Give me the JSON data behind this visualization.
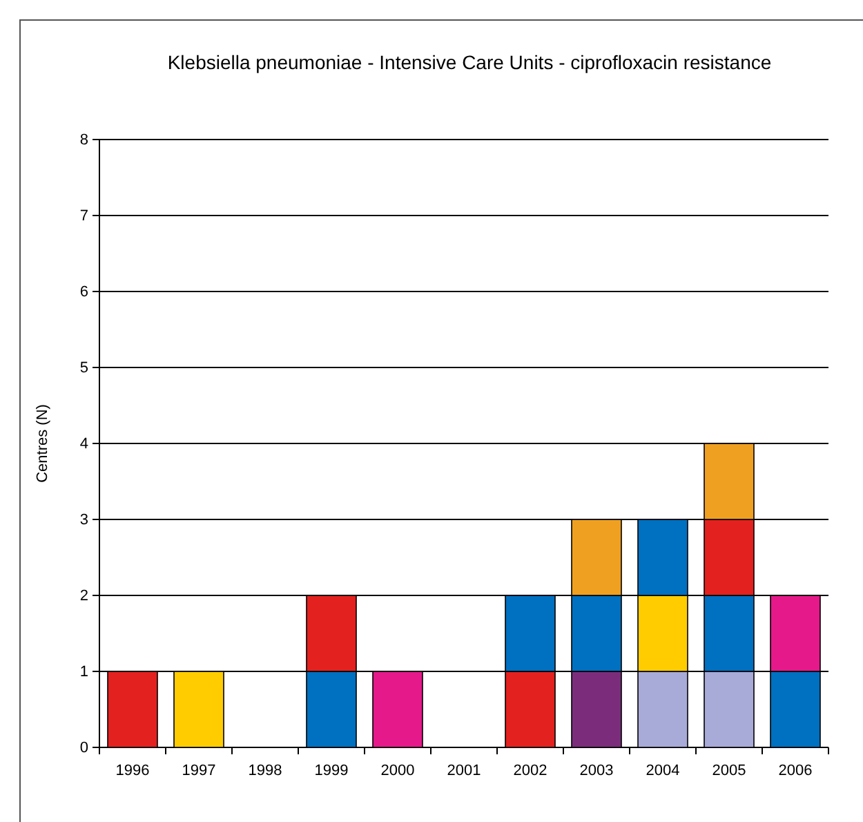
{
  "chart_data": {
    "type": "bar",
    "title": "Klebsiella pneumoniae - Intensive Care Units - ciprofloxacin resistance",
    "ylabel": "Centres (N)",
    "categories": [
      "1996",
      "1997",
      "1998",
      "1999",
      "2000",
      "2001",
      "2002",
      "2003",
      "2004",
      "2005",
      "2006"
    ],
    "stacked": true,
    "ylim": [
      0,
      8
    ],
    "yticks": [
      0,
      1,
      2,
      3,
      4,
      5,
      6,
      7,
      8
    ],
    "grid": "y",
    "series": [
      {
        "values": [
          1,
          1,
          null,
          1,
          1,
          null,
          1,
          1,
          1,
          1,
          1
        ],
        "colors": [
          "#e3211f",
          "#ffcc00",
          null,
          "#0070c0",
          "#e5198a",
          null,
          "#e3211f",
          "#7b2d7b",
          "#a8aad8",
          "#a8aad8",
          "#0070c0"
        ]
      },
      {
        "values": [
          null,
          null,
          null,
          1,
          null,
          null,
          1,
          1,
          1,
          1,
          1
        ],
        "colors": [
          null,
          null,
          null,
          "#e3211f",
          null,
          null,
          "#0070c0",
          "#0070c0",
          "#ffcc00",
          "#0070c0",
          "#e5198a"
        ]
      },
      {
        "values": [
          null,
          null,
          null,
          null,
          null,
          null,
          null,
          1,
          1,
          1,
          null
        ],
        "colors": [
          null,
          null,
          null,
          null,
          null,
          null,
          null,
          "#f0a020",
          "#0070c0",
          "#e3211f",
          null
        ]
      },
      {
        "values": [
          null,
          null,
          null,
          null,
          null,
          null,
          null,
          null,
          null,
          1,
          null
        ],
        "colors": [
          null,
          null,
          null,
          null,
          null,
          null,
          null,
          null,
          null,
          "#f0a020",
          null
        ]
      }
    ]
  }
}
